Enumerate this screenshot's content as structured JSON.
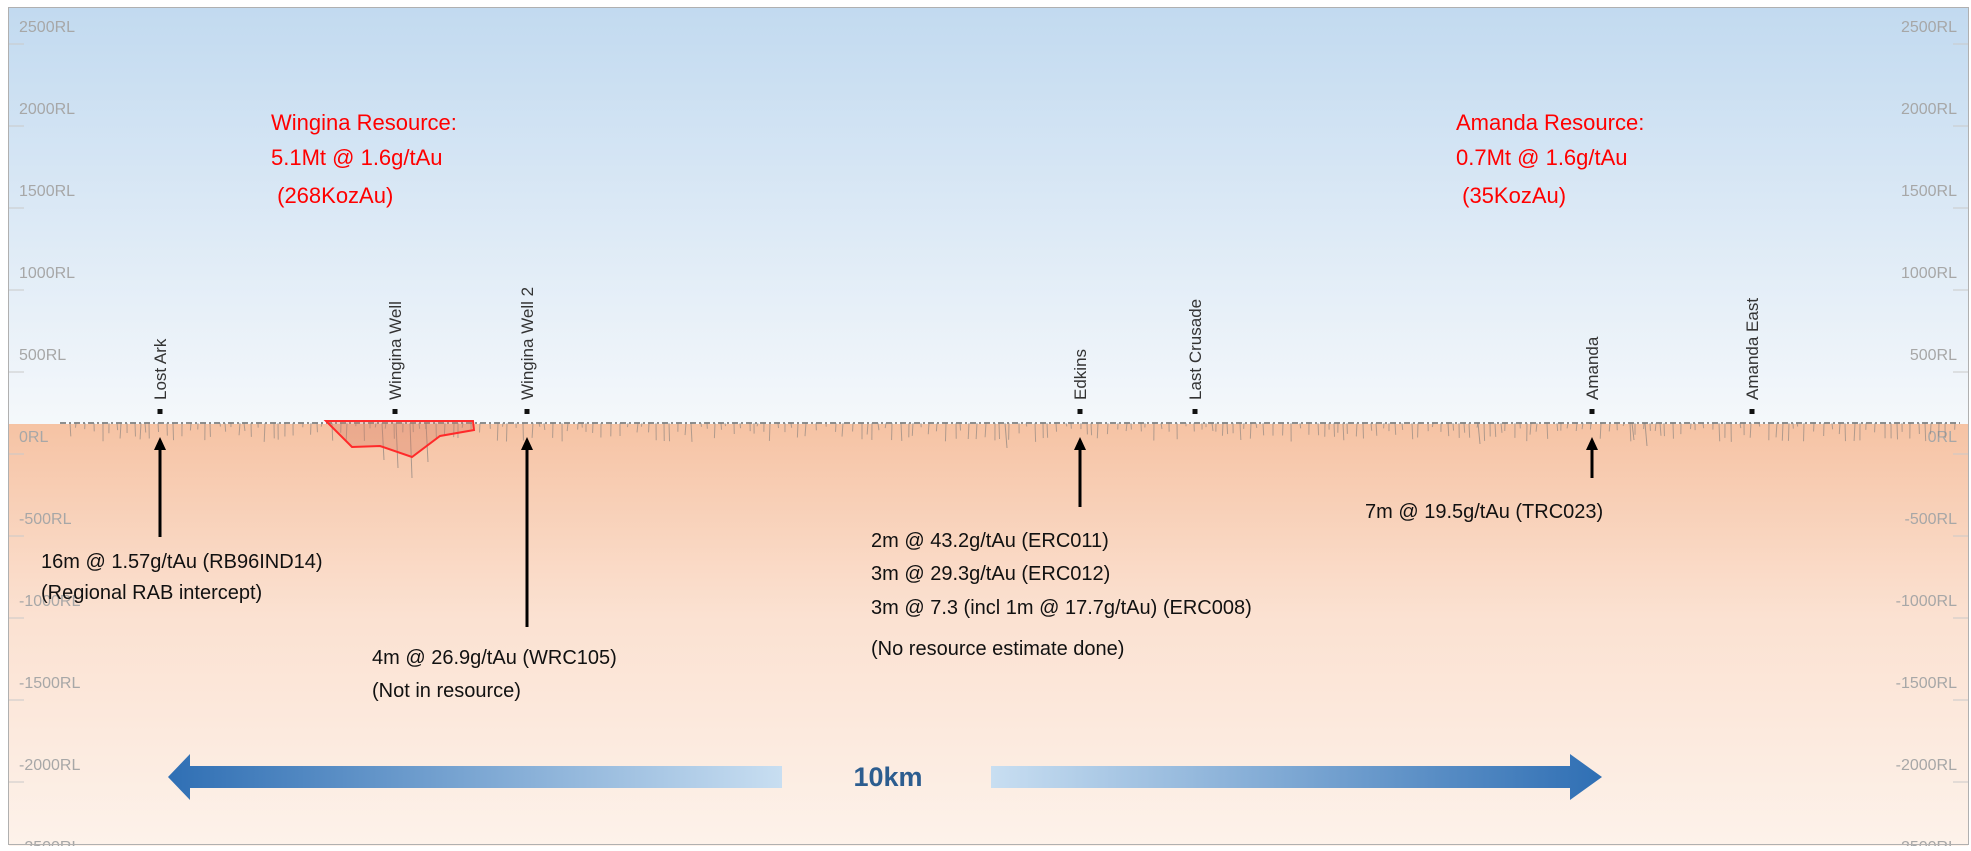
{
  "section": {
    "rl_levels": [
      "2500RL",
      "2000RL",
      "1500RL",
      "1000RL",
      "500RL",
      "0RL",
      "-500RL",
      "-1000RL",
      "-1500RL",
      "-2000RL",
      "-2500RL"
    ],
    "prospects": [
      {
        "name": "Lost Ark",
        "x_km": 1.49
      },
      {
        "name": "Wingina Well",
        "x_km": 3.69
      },
      {
        "name": "Wingina Well 2",
        "x_km": 4.92
      },
      {
        "name": "Edkins",
        "x_km": 10.08
      },
      {
        "name": "Last Crusade",
        "x_km": 11.16
      },
      {
        "name": "Amanda",
        "x_km": 14.86
      },
      {
        "name": "Amanda East",
        "x_km": 16.36
      }
    ],
    "resources": [
      {
        "name": "Wingina",
        "lines": [
          "Wingina Resource:",
          "5.1Mt @ 1.6g/tAu",
          " (268KozAu)"
        ]
      },
      {
        "name": "Amanda",
        "lines": [
          "Amanda Resource:",
          "0.7Mt @ 1.6g/tAu",
          " (35KozAu)"
        ]
      }
    ],
    "intercepts": [
      {
        "prospect": "Lost Ark",
        "lines": [
          "16m @ 1.57g/tAu (RB96IND14)",
          "(Regional RAB intercept)"
        ]
      },
      {
        "prospect": "Wingina Well 2",
        "lines": [
          "4m @ 26.9g/tAu (WRC105)",
          "(Not in resource)"
        ]
      },
      {
        "prospect": "Edkins",
        "lines": [
          "2m @ 43.2g/tAu (ERC011)",
          "3m @ 29.3g/tAu (ERC012)",
          "3m @ 7.3 (incl 1m @ 17.7g/tAu) (ERC008)",
          "(No resource estimate done)"
        ]
      },
      {
        "prospect": "Amanda",
        "lines": [
          "7m @ 19.5g/tAu (TRC023)"
        ]
      }
    ],
    "scale_label": "10km",
    "colors": {
      "sky_top": "#c2daf0",
      "ground": "#f6c3a4",
      "resource_text": "#ff0000",
      "resource_outline": "#ff2a2a",
      "scale_arrow": "#2f6fb4",
      "scale_text": "#2c5d8f"
    }
  }
}
